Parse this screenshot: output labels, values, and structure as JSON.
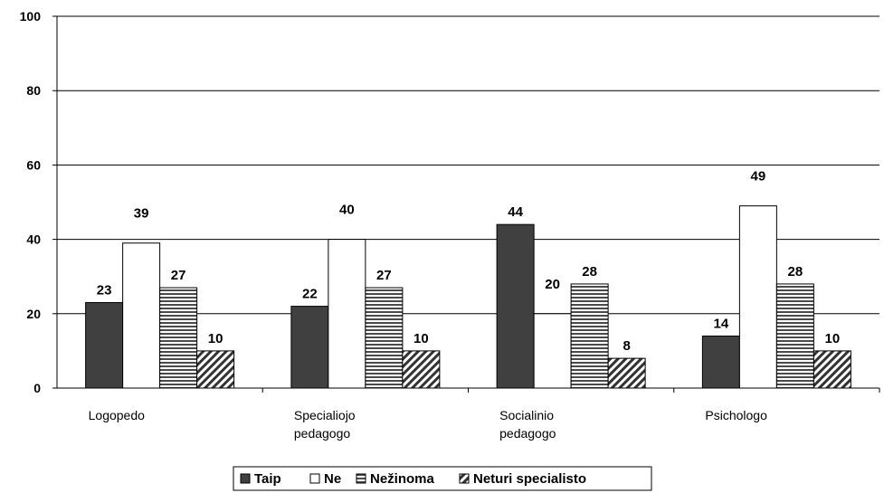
{
  "chart_data": {
    "type": "bar",
    "categories": [
      [
        "Logopedo"
      ],
      [
        "Specialiojo",
        "pedagogo"
      ],
      [
        "Socialinio",
        "pedagogo"
      ],
      [
        "Psichologo"
      ]
    ],
    "series": [
      {
        "name": "Taip",
        "values": [
          23,
          22,
          44,
          14
        ],
        "fill": "#404040",
        "pattern": "solid"
      },
      {
        "name": "Ne",
        "values": [
          39,
          40,
          20,
          49
        ],
        "fill": "#ffffff",
        "pattern": "none"
      },
      {
        "name": "Nežinoma",
        "values": [
          27,
          27,
          28,
          28
        ],
        "fill": "#ffffff",
        "pattern": "horizontal-stripes"
      },
      {
        "name": "Neturi specialisto",
        "values": [
          10,
          10,
          8,
          10
        ],
        "fill": "#ffffff",
        "pattern": "diagonal-stripes"
      }
    ],
    "ylim": [
      0,
      100
    ],
    "yticks": [
      0,
      20,
      40,
      60,
      80,
      100
    ],
    "grid": true,
    "legend_position": "bottom-center",
    "data_labels": true
  }
}
